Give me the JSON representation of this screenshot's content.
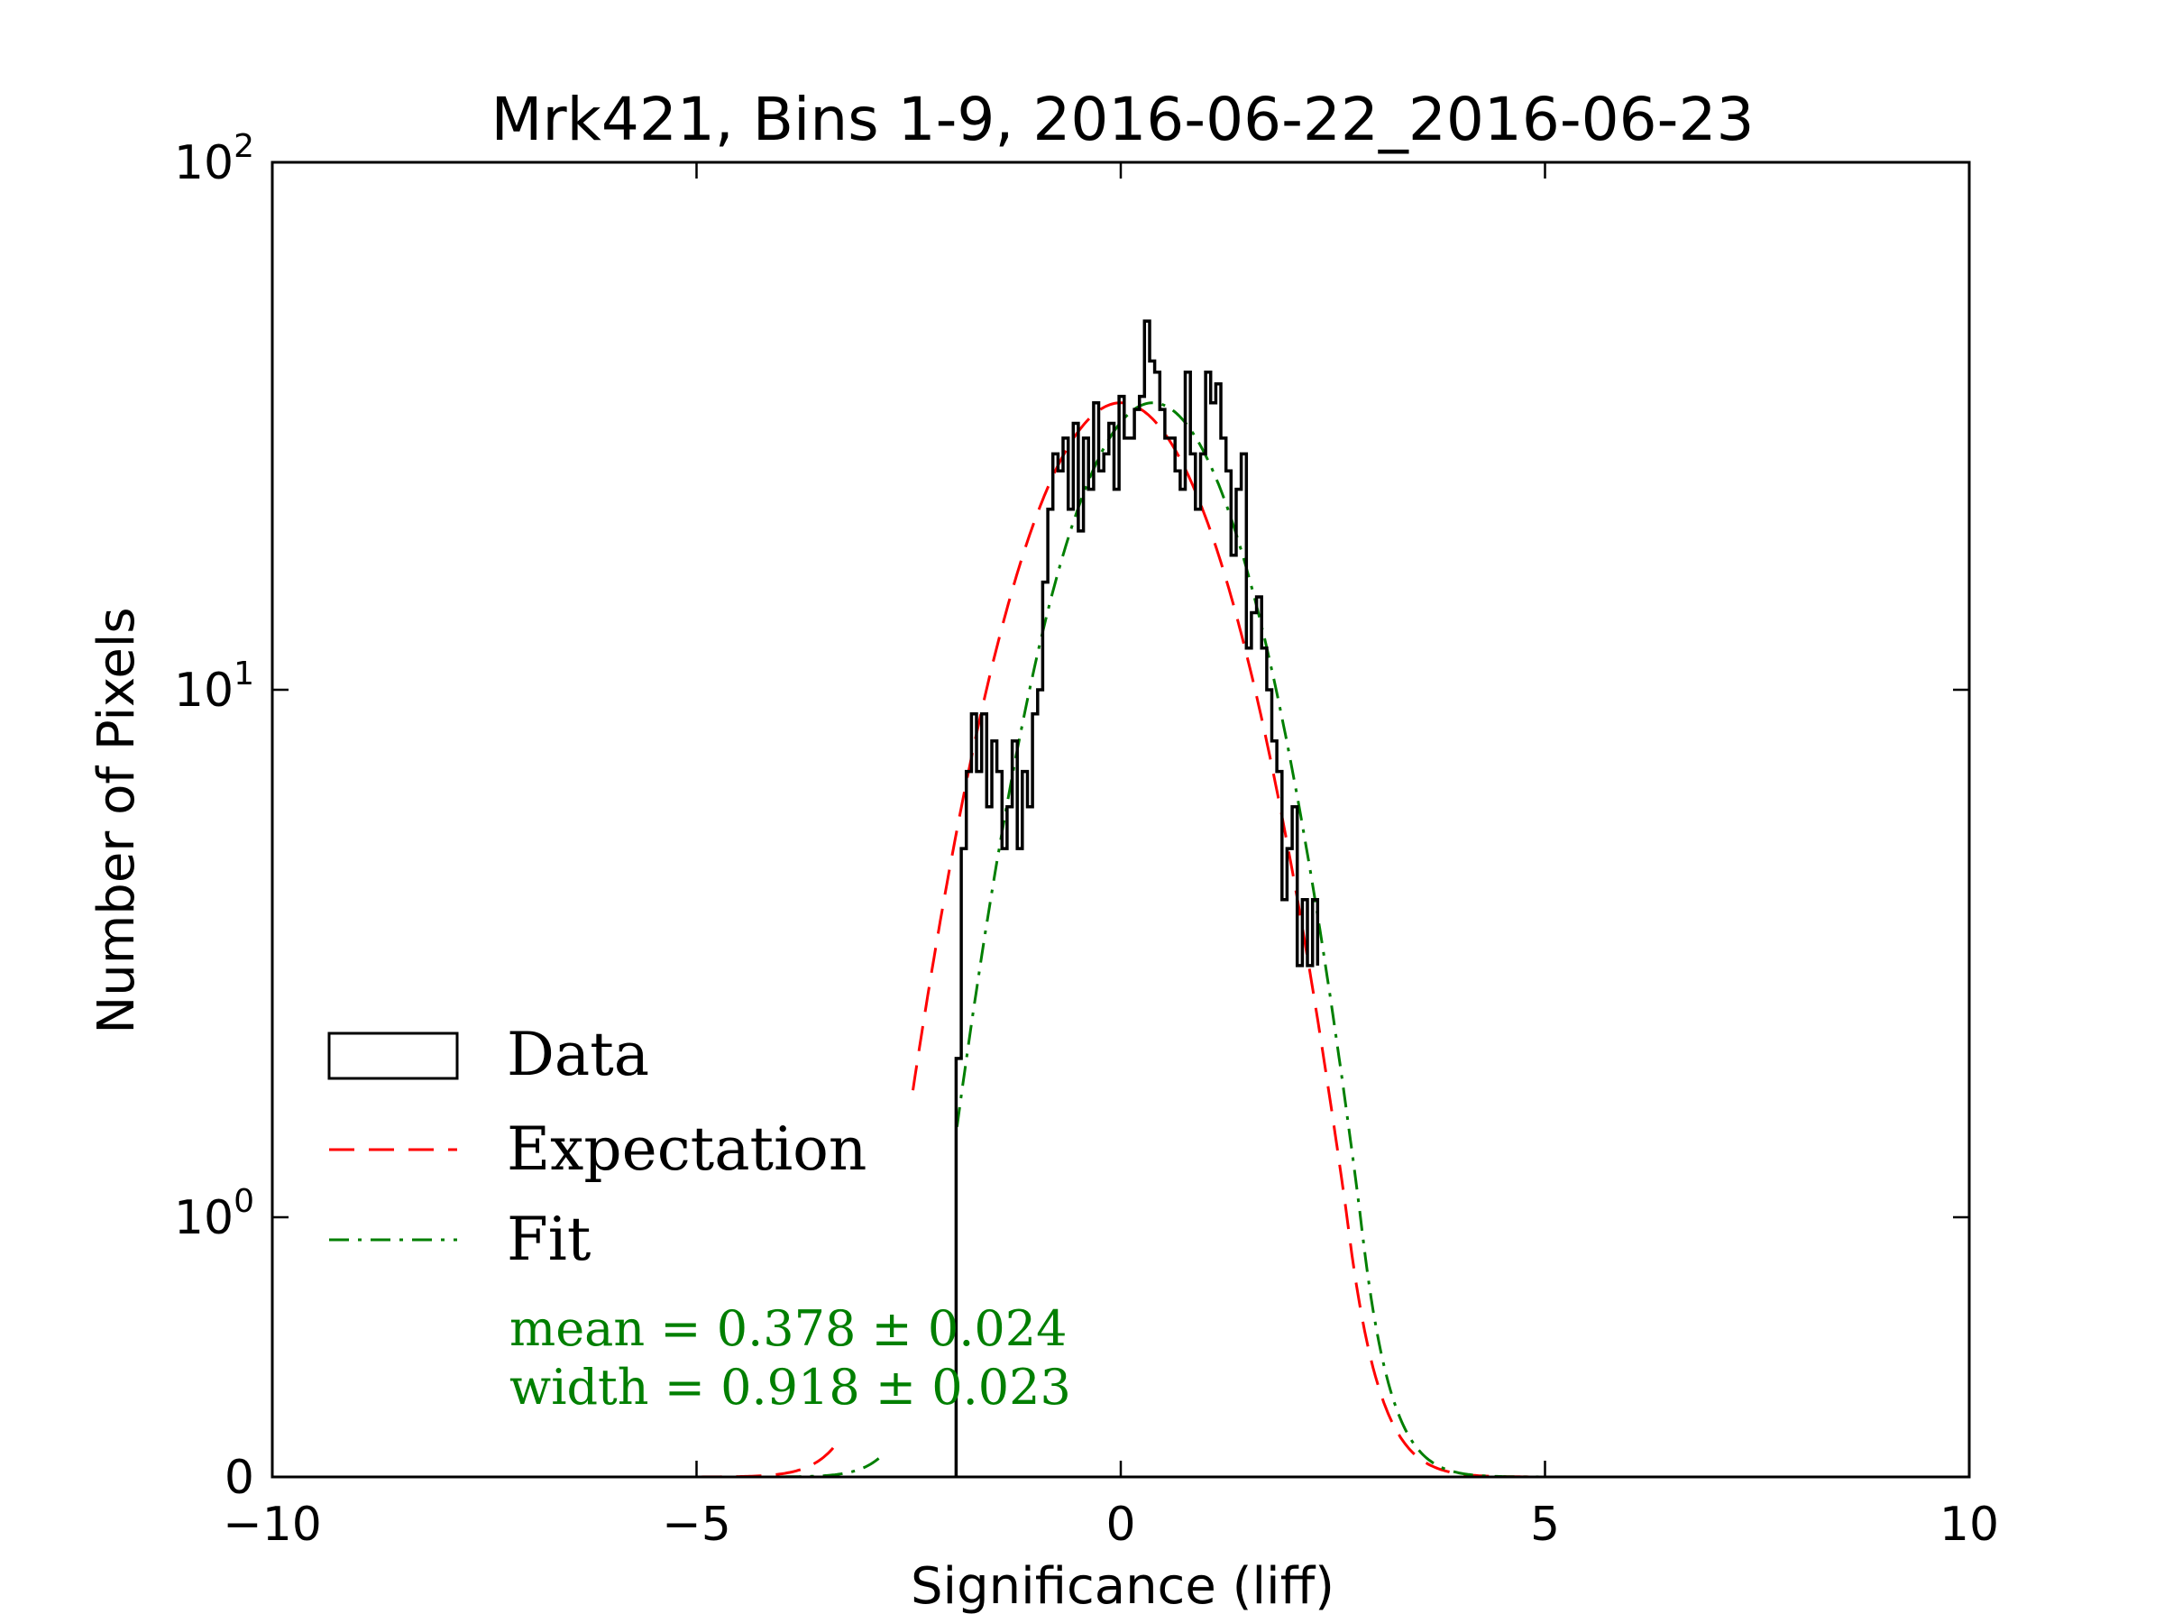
{
  "chart_data": {
    "type": "histogram",
    "title": "Mrk421, Bins 1-9, 2016-06-22_2016-06-23",
    "xlabel": "Significance (liff)",
    "ylabel": "Number of Pixels",
    "xlim": [
      -10,
      10
    ],
    "y_scale": "symlog",
    "ylim": [
      0,
      100
    ],
    "x_ticks": [
      {
        "value": -10,
        "label": "−10"
      },
      {
        "value": -5,
        "label": "−5"
      },
      {
        "value": 0,
        "label": "0"
      },
      {
        "value": 5,
        "label": "5"
      },
      {
        "value": 10,
        "label": "10"
      }
    ],
    "y_ticks": [
      {
        "value": 0,
        "base": "0",
        "exp": ""
      },
      {
        "value": 1,
        "base": "10",
        "exp": "0"
      },
      {
        "value": 10,
        "base": "10",
        "exp": "1"
      },
      {
        "value": 100,
        "base": "10",
        "exp": "2"
      }
    ],
    "legend": {
      "location": "lower-left",
      "entries": [
        {
          "label": "Data",
          "style": "box",
          "color": "#000000"
        },
        {
          "label": "Expectation",
          "style": "dashed",
          "color": "#ff0000"
        },
        {
          "label": "Fit",
          "style": "dashdot",
          "color": "#007f00"
        }
      ]
    },
    "annotations": [
      {
        "text": "mean = 0.378 ± 0.024",
        "color": "#007f00"
      },
      {
        "text": "width = 0.918 ± 0.023",
        "color": "#007f00"
      }
    ],
    "series": [
      {
        "name": "Data",
        "kind": "step",
        "color": "#000000",
        "bin_edges": [
          -1.94,
          -1.88,
          -1.82,
          -1.76,
          -1.7,
          -1.64,
          -1.58,
          -1.52,
          -1.46,
          -1.4,
          -1.34,
          -1.28,
          -1.22,
          -1.16,
          -1.1,
          -1.04,
          -0.98,
          -0.92,
          -0.86,
          -0.8,
          -0.74,
          -0.68,
          -0.62,
          -0.56,
          -0.5,
          -0.44,
          -0.38,
          -0.32,
          -0.26,
          -0.2,
          -0.14,
          -0.08,
          -0.02,
          0.04,
          0.1,
          0.16,
          0.22,
          0.28,
          0.34,
          0.4,
          0.46,
          0.52,
          0.58,
          0.64,
          0.7,
          0.76,
          0.82,
          0.88,
          0.94,
          1.0,
          1.06,
          1.12,
          1.18,
          1.24,
          1.3,
          1.36,
          1.42,
          1.48,
          1.54,
          1.6,
          1.66,
          1.72,
          1.78,
          1.84,
          1.9,
          1.96,
          2.02,
          2.08,
          2.14,
          2.2,
          2.26,
          2.32
        ],
        "counts": [
          2,
          5,
          7,
          9,
          7,
          9,
          6,
          8,
          7,
          5,
          6,
          8,
          5,
          7,
          6,
          9,
          10,
          16,
          22,
          28,
          26,
          30,
          22,
          32,
          20,
          30,
          24,
          35,
          26,
          28,
          32,
          24,
          36,
          30,
          30,
          34,
          36,
          50,
          42,
          40,
          34,
          30,
          30,
          26,
          24,
          40,
          28,
          22,
          28,
          40,
          35,
          38,
          30,
          26,
          18,
          24,
          28,
          12,
          14,
          15,
          12,
          10,
          8,
          7,
          4,
          5,
          6,
          3,
          4,
          3,
          4,
          3
        ],
        "final_value": 0
      },
      {
        "name": "Expectation",
        "kind": "gaussian",
        "color": "#ff0000",
        "amplitude": 35,
        "mean": 0.0,
        "sigma": 1.0,
        "x_range": [
          -5.0,
          5.0
        ],
        "visible_from": -2.45
      },
      {
        "name": "Fit",
        "kind": "gaussian",
        "color": "#007f00",
        "amplitude": 35,
        "mean": 0.378,
        "sigma": 0.918,
        "x_range": [
          -4.0,
          5.0
        ],
        "visible_from": -1.95
      }
    ]
  }
}
